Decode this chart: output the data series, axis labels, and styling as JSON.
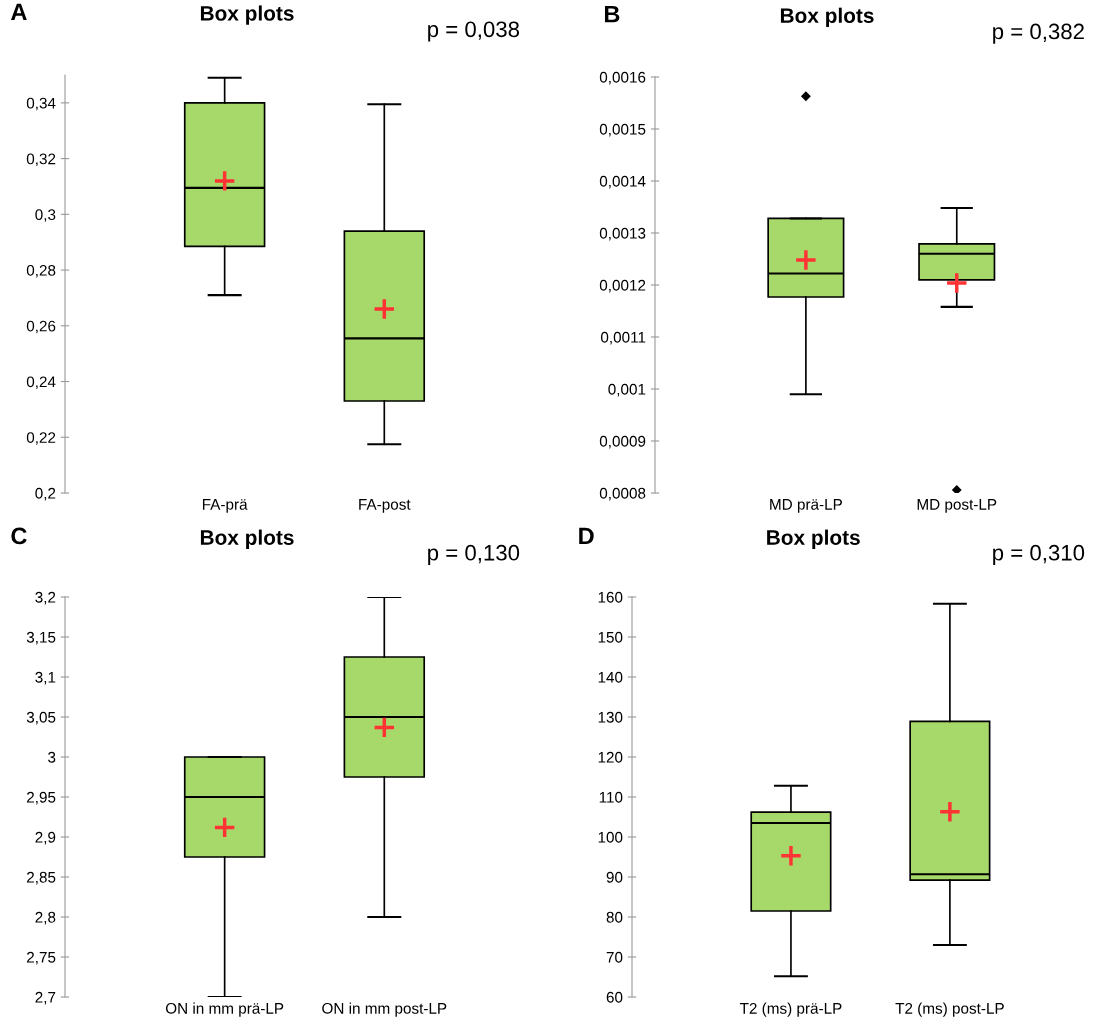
{
  "chart_data": [
    {
      "type": "box",
      "title": "Box plots",
      "annotations": [
        "A",
        "p = 0,038"
      ],
      "color": "#a6d96a",
      "categories": [
        "FA-prä",
        "FA-post"
      ],
      "boxes": [
        {
          "low": 0.271,
          "q1": 0.2885,
          "median": 0.3095,
          "q3": 0.34,
          "high": 0.349,
          "mean": 0.312
        },
        {
          "low": 0.2175,
          "q1": 0.233,
          "median": 0.2555,
          "q3": 0.294,
          "high": 0.3395,
          "mean": 0.266
        }
      ],
      "ylim": [
        0.2,
        0.35
      ],
      "yticks": [
        {
          "value": 0.2,
          "label": "0,2"
        },
        {
          "value": 0.22,
          "label": "0,22"
        },
        {
          "value": 0.24,
          "label": "0,24"
        },
        {
          "value": 0.26,
          "label": "0,26"
        },
        {
          "value": 0.28,
          "label": "0,28"
        },
        {
          "value": 0.3,
          "label": "0,3"
        },
        {
          "value": 0.32,
          "label": "0,32"
        },
        {
          "value": 0.34,
          "label": "0,34"
        }
      ]
    },
    {
      "type": "box",
      "title": "Box plots",
      "annotations": [
        "B",
        "p = 0,382"
      ],
      "color": "#a6d96a",
      "categories": [
        "MD prä-LP",
        "MD post-LP"
      ],
      "boxes": [
        {
          "low": 0.00099,
          "q1": 0.001177,
          "median": 0.001222,
          "q3": 0.001328,
          "high": 0.001328,
          "mean": 0.001248,
          "outliers": [
            0.001563
          ]
        },
        {
          "low": 0.001158,
          "q1": 0.00121,
          "median": 0.00126,
          "q3": 0.001279,
          "high": 0.001348,
          "mean": 0.001204,
          "outliers": [
            0.000806
          ]
        }
      ],
      "ylim": [
        0.0008,
        0.0016
      ],
      "yticks": [
        {
          "value": 0.0008,
          "label": "0,0008"
        },
        {
          "value": 0.0009,
          "label": "0,0009"
        },
        {
          "value": 0.001,
          "label": "0,001"
        },
        {
          "value": 0.0011,
          "label": "0,0011"
        },
        {
          "value": 0.0012,
          "label": "0,0012"
        },
        {
          "value": 0.0013,
          "label": "0,0013"
        },
        {
          "value": 0.0014,
          "label": "0,0014"
        },
        {
          "value": 0.0015,
          "label": "0,0015"
        },
        {
          "value": 0.0016,
          "label": "0,0016"
        }
      ]
    },
    {
      "type": "box",
      "title": "Box plots",
      "annotations": [
        "C",
        "p = 0,130"
      ],
      "color": "#a6d96a",
      "categories": [
        "ON in mm prä-LP",
        "ON in mm post-LP"
      ],
      "boxes": [
        {
          "low": 2.7,
          "q1": 2.875,
          "median": 2.95,
          "q3": 3.0,
          "high": 3.0,
          "mean": 2.912
        },
        {
          "low": 2.8,
          "q1": 2.975,
          "median": 3.05,
          "q3": 3.125,
          "high": 3.2,
          "mean": 3.037
        }
      ],
      "ylim": [
        2.7,
        3.2
      ],
      "yticks": [
        {
          "value": 2.7,
          "label": "2,7"
        },
        {
          "value": 2.75,
          "label": "2,75"
        },
        {
          "value": 2.8,
          "label": "2,8"
        },
        {
          "value": 2.85,
          "label": "2,85"
        },
        {
          "value": 2.9,
          "label": "2,9"
        },
        {
          "value": 2.95,
          "label": "2,95"
        },
        3,
        {
          "value": 3.05,
          "label": "3,05"
        },
        {
          "value": 3.1,
          "label": "3,1"
        },
        {
          "value": 3.15,
          "label": "3,15"
        },
        {
          "value": 3.2,
          "label": "3,2"
        }
      ]
    },
    {
      "type": "box",
      "title": "Box plots",
      "annotations": [
        "D",
        "p = 0,310"
      ],
      "color": "#a6d96a",
      "categories": [
        "T2 (ms) prä-LP",
        "T2 (ms) post-LP"
      ],
      "boxes": [
        {
          "low": 65.2,
          "q1": 81.5,
          "median": 103.5,
          "q3": 106.2,
          "high": 112.8,
          "mean": 95.3
        },
        {
          "low": 73,
          "q1": 89.2,
          "median": 90.7,
          "q3": 128.9,
          "high": 158.3,
          "mean": 106.3
        }
      ],
      "ylim": [
        60,
        160
      ],
      "yticks": [
        60,
        70,
        80,
        90,
        100,
        110,
        120,
        130,
        140,
        150,
        160
      ]
    }
  ]
}
